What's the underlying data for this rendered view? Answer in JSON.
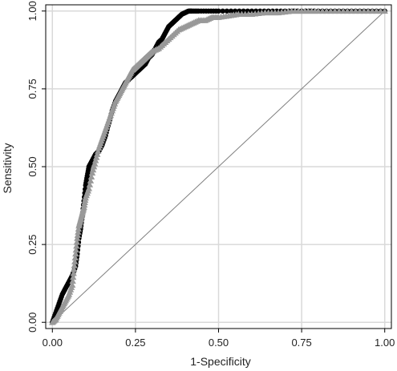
{
  "chart_data": {
    "type": "scatter",
    "xlabel": "1-Specificity",
    "ylabel": "Sensitivity",
    "xlim": [
      -0.02,
      1.02
    ],
    "ylim": [
      -0.02,
      1.02
    ],
    "x_ticks": [
      "0.00",
      "0.25",
      "0.50",
      "0.75",
      "1.00"
    ],
    "y_ticks": [
      "0.00",
      "0.25",
      "0.50",
      "0.75",
      "1.00"
    ],
    "grid": true,
    "reference_line": {
      "from": [
        0,
        0
      ],
      "to": [
        1,
        1
      ],
      "color": "#7f7f7f"
    },
    "series": [
      {
        "marker": "circle",
        "color": "#000000",
        "x": [
          0.0,
          0.01,
          0.02,
          0.03,
          0.04,
          0.05,
          0.06,
          0.07,
          0.075,
          0.08,
          0.085,
          0.09,
          0.095,
          0.1,
          0.105,
          0.11,
          0.12,
          0.13,
          0.14,
          0.15,
          0.16,
          0.17,
          0.18,
          0.19,
          0.2,
          0.21,
          0.22,
          0.23,
          0.24,
          0.25,
          0.26,
          0.27,
          0.28,
          0.29,
          0.3,
          0.31,
          0.32,
          0.33,
          0.34,
          0.35,
          0.36,
          0.37,
          0.38,
          0.39,
          0.4,
          0.41,
          0.42,
          0.44,
          0.47,
          0.5,
          0.55,
          0.6,
          0.65,
          0.7,
          0.75,
          0.8,
          0.85,
          0.9,
          0.95,
          1.0
        ],
        "y": [
          0.0,
          0.03,
          0.06,
          0.09,
          0.11,
          0.13,
          0.15,
          0.18,
          0.22,
          0.27,
          0.3,
          0.34,
          0.39,
          0.44,
          0.47,
          0.5,
          0.52,
          0.54,
          0.55,
          0.57,
          0.6,
          0.64,
          0.68,
          0.71,
          0.73,
          0.75,
          0.77,
          0.78,
          0.79,
          0.8,
          0.81,
          0.82,
          0.83,
          0.85,
          0.86,
          0.88,
          0.9,
          0.91,
          0.93,
          0.95,
          0.96,
          0.97,
          0.98,
          0.99,
          0.995,
          1.0,
          1.0,
          1.0,
          1.0,
          1.0,
          1.0,
          1.0,
          1.0,
          1.0,
          1.0,
          1.0,
          1.0,
          1.0,
          1.0,
          1.0
        ]
      },
      {
        "marker": "triangle",
        "color": "#999999",
        "x": [
          0.0,
          0.01,
          0.02,
          0.03,
          0.04,
          0.05,
          0.06,
          0.065,
          0.07,
          0.075,
          0.08,
          0.085,
          0.09,
          0.095,
          0.1,
          0.11,
          0.12,
          0.13,
          0.14,
          0.15,
          0.16,
          0.17,
          0.18,
          0.19,
          0.2,
          0.21,
          0.22,
          0.23,
          0.24,
          0.25,
          0.26,
          0.27,
          0.28,
          0.29,
          0.3,
          0.32,
          0.34,
          0.36,
          0.38,
          0.4,
          0.42,
          0.44,
          0.46,
          0.48,
          0.5,
          0.53,
          0.56,
          0.6,
          0.64,
          0.68,
          0.72,
          0.76,
          0.8,
          0.85,
          0.9,
          0.95,
          1.0
        ],
        "y": [
          0.0,
          0.01,
          0.03,
          0.05,
          0.07,
          0.09,
          0.12,
          0.17,
          0.22,
          0.27,
          0.31,
          0.33,
          0.35,
          0.37,
          0.4,
          0.43,
          0.48,
          0.52,
          0.56,
          0.59,
          0.62,
          0.65,
          0.68,
          0.71,
          0.73,
          0.75,
          0.77,
          0.79,
          0.81,
          0.82,
          0.83,
          0.84,
          0.85,
          0.86,
          0.87,
          0.88,
          0.9,
          0.92,
          0.94,
          0.95,
          0.96,
          0.97,
          0.97,
          0.98,
          0.98,
          0.985,
          0.99,
          0.99,
          0.995,
          0.995,
          1.0,
          1.0,
          1.0,
          1.0,
          1.0,
          1.0,
          1.0
        ]
      }
    ]
  }
}
